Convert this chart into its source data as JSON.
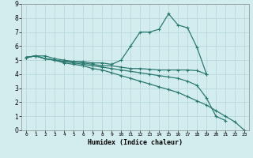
{
  "x": [
    0,
    1,
    2,
    3,
    4,
    5,
    6,
    7,
    8,
    9,
    10,
    11,
    12,
    13,
    14,
    15,
    16,
    17,
    18,
    19,
    20,
    21,
    22,
    23
  ],
  "line1": [
    5.2,
    5.3,
    5.3,
    5.1,
    5.0,
    4.9,
    4.9,
    4.8,
    4.8,
    4.7,
    5.0,
    6.0,
    7.0,
    7.0,
    7.2,
    8.3,
    7.5,
    7.3,
    5.9,
    4.0,
    null,
    null,
    null,
    null
  ],
  "line2": [
    5.2,
    5.3,
    5.1,
    5.0,
    4.9,
    4.9,
    4.8,
    4.7,
    4.6,
    4.6,
    4.5,
    4.4,
    4.4,
    4.35,
    4.3,
    4.3,
    4.3,
    4.3,
    4.25,
    4.0,
    null,
    null,
    null,
    null
  ],
  "line3": [
    5.2,
    5.3,
    5.1,
    5.0,
    4.9,
    4.8,
    4.7,
    4.6,
    4.5,
    4.4,
    4.3,
    4.2,
    4.1,
    4.0,
    3.9,
    3.8,
    3.7,
    3.5,
    3.2,
    2.3,
    1.0,
    0.7,
    null,
    null
  ],
  "line4": [
    5.2,
    5.3,
    5.1,
    5.0,
    4.8,
    4.7,
    4.6,
    4.4,
    4.3,
    4.1,
    3.9,
    3.7,
    3.5,
    3.3,
    3.1,
    2.9,
    2.7,
    2.4,
    2.1,
    1.8,
    1.4,
    1.0,
    0.6,
    0.0
  ],
  "line_color": "#2a7a70",
  "bg_color": "#d3ecee",
  "grid_color": "#b8d8dc",
  "xlabel": "Humidex (Indice chaleur)",
  "xlim": [
    -0.5,
    23.5
  ],
  "ylim": [
    0,
    9
  ],
  "xticks": [
    0,
    1,
    2,
    3,
    4,
    5,
    6,
    7,
    8,
    9,
    10,
    11,
    12,
    13,
    14,
    15,
    16,
    17,
    18,
    19,
    20,
    21,
    22,
    23
  ],
  "yticks": [
    0,
    1,
    2,
    3,
    4,
    5,
    6,
    7,
    8,
    9
  ],
  "marker": "+",
  "markersize": 3,
  "linewidth": 0.9
}
